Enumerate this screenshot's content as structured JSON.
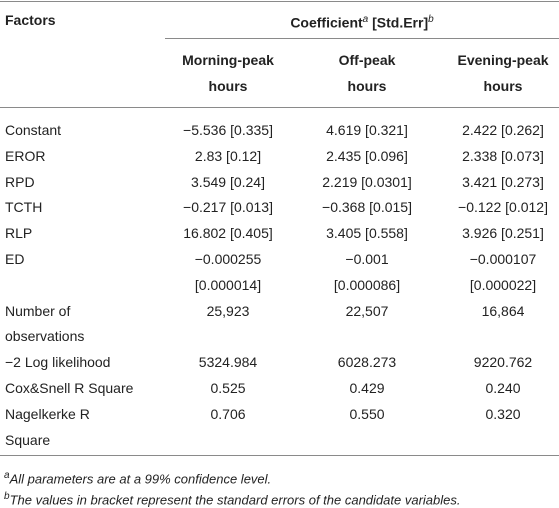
{
  "header": {
    "factors": "Factors",
    "coefficient": {
      "text": "Coefficient",
      "mark_a": "a",
      "std_err": "[Std.Err]",
      "mark_b": "b"
    },
    "columns": [
      [
        "Morning-peak",
        "hours"
      ],
      [
        "Off-peak",
        "hours"
      ],
      [
        "Evening-peak",
        "hours"
      ]
    ]
  },
  "table": {
    "rows": [
      {
        "label": [
          "Constant"
        ],
        "cells": [
          [
            "−5.536 [0.335]"
          ],
          [
            "4.619 [0.321]"
          ],
          [
            "2.422 [0.262]"
          ]
        ]
      },
      {
        "label": [
          "EROR"
        ],
        "cells": [
          [
            "2.83 [0.12]"
          ],
          [
            "2.435 [0.096]"
          ],
          [
            "2.338 [0.073]"
          ]
        ]
      },
      {
        "label": [
          "RPD"
        ],
        "cells": [
          [
            "3.549 [0.24]"
          ],
          [
            "2.219 [0.0301]"
          ],
          [
            "3.421 [0.273]"
          ]
        ]
      },
      {
        "label": [
          "TCTH"
        ],
        "cells": [
          [
            "−0.217 [0.013]"
          ],
          [
            "−0.368 [0.015]"
          ],
          [
            "−0.122 [0.012]"
          ]
        ]
      },
      {
        "label": [
          "RLP"
        ],
        "cells": [
          [
            "16.802 [0.405]"
          ],
          [
            "3.405 [0.558]"
          ],
          [
            "3.926 [0.251]"
          ]
        ]
      },
      {
        "label": [
          "ED"
        ],
        "cells": [
          [
            "−0.000255",
            "[0.000014]"
          ],
          [
            "−0.001",
            "[0.000086]"
          ],
          [
            "−0.000107",
            "[0.000022]"
          ]
        ]
      },
      {
        "label": [
          "Number of",
          "observations"
        ],
        "cells": [
          [
            "25,923"
          ],
          [
            "22,507"
          ],
          [
            "16,864"
          ]
        ]
      },
      {
        "label": [
          "−2 Log likelihood"
        ],
        "cells": [
          [
            "5324.984"
          ],
          [
            "6028.273"
          ],
          [
            "9220.762"
          ]
        ]
      },
      {
        "label": [
          "Cox&Snell R Square"
        ],
        "cells": [
          [
            "0.525"
          ],
          [
            "0.429"
          ],
          [
            "0.240"
          ]
        ]
      },
      {
        "label": [
          "Nagelkerke R",
          "Square"
        ],
        "cells": [
          [
            "0.706"
          ],
          [
            "0.550"
          ],
          [
            "0.320"
          ]
        ]
      }
    ]
  },
  "footnotes": [
    {
      "mark": "a",
      "text": "All parameters are at a 99% confidence level."
    },
    {
      "mark": "b",
      "text": "The values in bracket represent the standard errors of the candidate variables."
    }
  ]
}
